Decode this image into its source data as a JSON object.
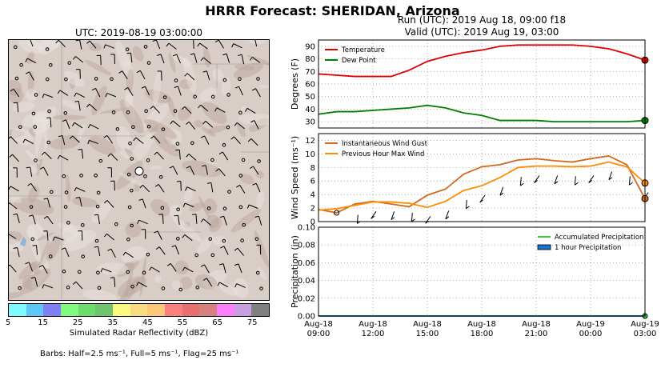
{
  "title": "HRRR Forecast: SHERIDAN, Arizona",
  "map": {
    "title": "UTC: 2019-08-19 03:00:00",
    "colorbar": {
      "colors": [
        "#7ffaff",
        "#5cc8f8",
        "#8080f5",
        "#80fa80",
        "#6cdc6c",
        "#70c470",
        "#fafa80",
        "#fadc80",
        "#fac878",
        "#fa7f7f",
        "#e87070",
        "#d88080",
        "#fa80fa",
        "#c8a0e0",
        "#808080"
      ],
      "ticks": [
        "5",
        "15",
        "25",
        "35",
        "45",
        "55",
        "65",
        "75"
      ],
      "label": "Simulated Radar Reflectivity (dBZ)"
    },
    "barbs_note": "Barbs: Half=2.5 ms⁻¹, Full=5 ms⁻¹, Flag=25 ms⁻¹"
  },
  "run": {
    "line1": "Run (UTC): 2019 Aug 18, 09:00 f18",
    "line2": "Valid (UTC): 2019 Aug 19, 03:00"
  },
  "chart_data": [
    {
      "type": "line",
      "ylabel": "Degrees (F)",
      "ylim": [
        25,
        95
      ],
      "yticks": [
        30,
        40,
        50,
        60,
        70,
        80,
        90
      ],
      "x": [
        "Aug-18 09:00",
        "Aug-18 10:00",
        "Aug-18 11:00",
        "Aug-18 12:00",
        "Aug-18 13:00",
        "Aug-18 14:00",
        "Aug-18 15:00",
        "Aug-18 16:00",
        "Aug-18 17:00",
        "Aug-18 18:00",
        "Aug-18 19:00",
        "Aug-18 20:00",
        "Aug-18 21:00",
        "Aug-18 22:00",
        "Aug-18 23:00",
        "Aug-19 00:00",
        "Aug-19 01:00",
        "Aug-19 02:00",
        "Aug-19 03:00"
      ],
      "series": [
        {
          "name": "Temperature",
          "color": "#e00000",
          "values": [
            68,
            67,
            66,
            66,
            66,
            71,
            78,
            82,
            85,
            87,
            90,
            91,
            91,
            91,
            91,
            90,
            88,
            84,
            79
          ]
        },
        {
          "name": "Dew Point",
          "color": "#008000",
          "values": [
            36,
            38,
            38,
            39,
            40,
            41,
            43,
            41,
            37,
            35,
            31,
            31,
            31,
            30,
            30,
            30,
            30,
            30,
            31
          ]
        }
      ],
      "legend": "top-left",
      "grid": true
    },
    {
      "type": "line",
      "ylabel": "Wind Speed (ms⁻¹)",
      "ylim": [
        0,
        13
      ],
      "yticks": [
        0,
        2,
        4,
        6,
        8,
        10,
        12
      ],
      "series": [
        {
          "name": "Instantaneous Wind Gust",
          "color": "#d2691e",
          "values": [
            1.8,
            1.3,
            2.6,
            3.0,
            2.6,
            2.2,
            3.9,
            4.8,
            7.0,
            8.1,
            8.4,
            9.1,
            9.3,
            9.0,
            8.8,
            9.3,
            9.7,
            8.4,
            3.4
          ]
        },
        {
          "name": "Previous Hour Max Wind",
          "color": "#ff8c00",
          "values": [
            1.7,
            1.9,
            2.4,
            2.9,
            2.9,
            2.7,
            2.1,
            3.0,
            4.6,
            5.3,
            6.5,
            8.0,
            8.2,
            8.2,
            8.1,
            8.2,
            8.8,
            8.1,
            5.7
          ]
        }
      ],
      "barb_markers": true,
      "legend": "top-left",
      "grid": true
    },
    {
      "type": "line",
      "ylabel": "Precipitation (in)",
      "ylim": [
        0,
        0.1
      ],
      "yticks": [
        "0.00",
        "0.02",
        "0.04",
        "0.06",
        "0.08",
        "0.10"
      ],
      "series": [
        {
          "name": "Accumulated Precipitation",
          "color": "#32cd32",
          "values": [
            0,
            0,
            0,
            0,
            0,
            0,
            0,
            0,
            0,
            0,
            0,
            0,
            0,
            0,
            0,
            0,
            0,
            0,
            0
          ]
        },
        {
          "name": "1 hour Precipitation",
          "color": "#1e6fd0",
          "values": [
            0,
            0,
            0,
            0,
            0,
            0,
            0,
            0,
            0,
            0,
            0,
            0,
            0,
            0,
            0,
            0,
            0,
            0,
            0
          ]
        }
      ],
      "xticklabels": [
        {
          "date": "Aug-18",
          "time": "09:00"
        },
        {
          "date": "Aug-18",
          "time": "12:00"
        },
        {
          "date": "Aug-18",
          "time": "15:00"
        },
        {
          "date": "Aug-18",
          "time": "18:00"
        },
        {
          "date": "Aug-18",
          "time": "21:00"
        },
        {
          "date": "Aug-19",
          "time": "00:00"
        },
        {
          "date": "Aug-19",
          "time": "03:00"
        }
      ],
      "legend": "top-right",
      "grid": true
    }
  ]
}
